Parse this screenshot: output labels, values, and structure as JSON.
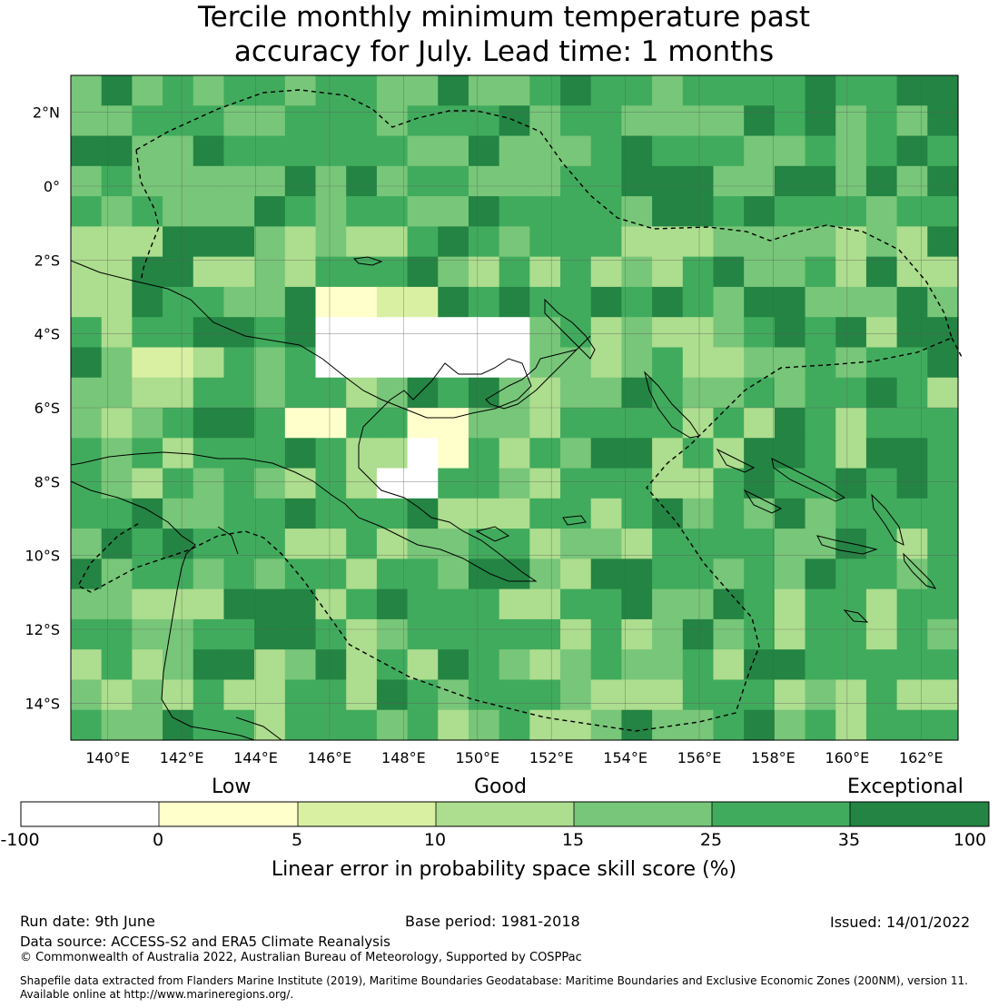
{
  "title_line1": "Tercile monthly minimum temperature past",
  "title_line2": "accuracy for July. Lead time: 1 months",
  "map": {
    "lon_range": [
      139,
      163
    ],
    "lat_range": [
      -15,
      3
    ],
    "lon_ticks": [
      "140°E",
      "142°E",
      "144°E",
      "146°E",
      "148°E",
      "150°E",
      "152°E",
      "154°E",
      "156°E",
      "158°E",
      "160°E",
      "162°E"
    ],
    "lat_ticks": [
      "2°N",
      "0°",
      "2°S",
      "4°S",
      "6°S",
      "8°S",
      "10°S",
      "12°S",
      "14°S"
    ],
    "grid": "on",
    "grid_cols": 29,
    "grid_rows": 22,
    "regions": [
      {
        "name": "white",
        "lon": [
          146.0,
          151.5
        ],
        "lat": [
          -5.0,
          -3.7
        ]
      },
      {
        "name": "white",
        "lon": [
          144.5,
          146.0
        ],
        "lat": [
          -6.3,
          -5.8
        ]
      },
      {
        "name": "white",
        "lon": [
          148.3,
          149.0
        ],
        "lat": [
          -8.3,
          -7.2
        ]
      },
      {
        "name": "white",
        "lon": [
          147.0,
          147.8
        ],
        "lat": [
          -8.3,
          -7.8
        ]
      },
      {
        "name": "yellow",
        "lon": [
          145.5,
          147.5
        ],
        "lat": [
          -4.0,
          -3.0
        ]
      },
      {
        "name": "yellow",
        "lon": [
          144.8,
          146.2
        ],
        "lat": [
          -6.7,
          -6.2
        ]
      },
      {
        "name": "yellow",
        "lon": [
          148.3,
          149.7
        ],
        "lat": [
          -7.8,
          -6.2
        ]
      },
      {
        "name": "lightgreen",
        "lon": [
          141.0,
          142.5
        ],
        "lat": [
          -5.2,
          -4.7
        ]
      },
      {
        "name": "lightgreen",
        "lon": [
          146.5,
          149.0
        ],
        "lat": [
          -3.5,
          -2.8
        ]
      }
    ]
  },
  "colorbar": {
    "categories": [
      "Low",
      "Good",
      "Exceptional"
    ],
    "ticks": [
      "-100",
      "0",
      "5",
      "10",
      "15",
      "25",
      "35",
      "100"
    ],
    "colors": [
      "#ffffff",
      "#ffffcc",
      "#d9f0a3",
      "#addd8e",
      "#78c679",
      "#41ab5d",
      "#238443"
    ],
    "label": "Linear error in probability space skill score (%)"
  },
  "footer": {
    "run_date": "Run date: 9th June",
    "base_period": "Base period: 1981-2018",
    "issued": "Issued: 14/01/2022",
    "data_source": "Data source: ACCESS-S2 and ERA5 Climate Reanalysis",
    "copyright": "© Commonwealth of Australia 2022, Australian Bureau of Meteorology, Supported by COSPPac",
    "shapefile_line1": "Shapefile data extracted from Flanders Marine Institute (2019), Maritime Boundaries Geodatabase: Maritime Boundaries and Exclusive Economic Zones (200NM), version 11.",
    "shapefile_line2": "Available online at http://www.marineregions.org/."
  }
}
